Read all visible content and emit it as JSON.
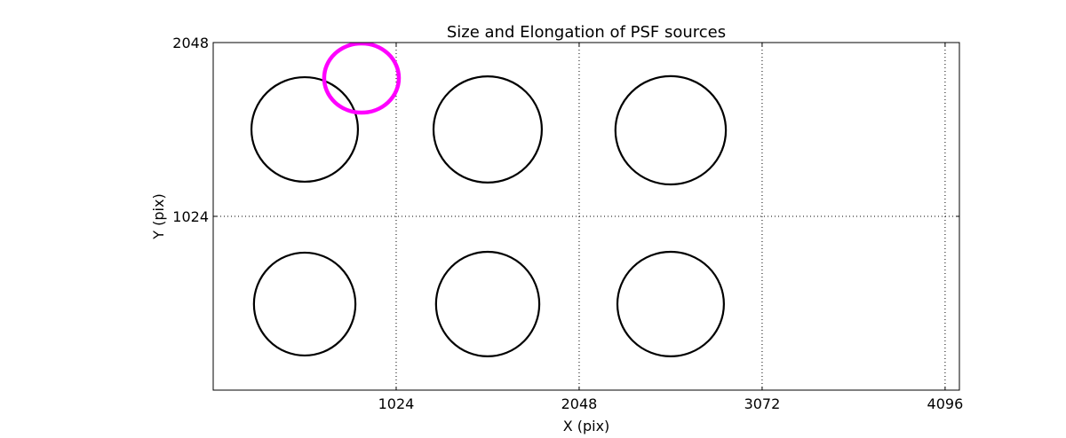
{
  "chart_data": {
    "type": "scatter",
    "title": "Size and Elongation of PSF sources",
    "xlabel": "X (pix)",
    "ylabel": "Y (pix)",
    "xlim": [
      0,
      4176
    ],
    "ylim": [
      0,
      2048
    ],
    "xticks": [
      1024,
      2048,
      3072,
      4096
    ],
    "xtick_labels": [
      "1024",
      "2048",
      "3072",
      "4096"
    ],
    "yticks": [
      1024,
      2048
    ],
    "ytick_labels": [
      "1024",
      "2048"
    ],
    "grid": true,
    "legend": "none",
    "colors": {
      "source": "#000000",
      "highlight": "#ff00ff"
    },
    "sources": [
      {
        "x": 512,
        "y": 1536,
        "rx": 298,
        "ry": 308
      },
      {
        "x": 1536,
        "y": 1536,
        "rx": 303,
        "ry": 313
      },
      {
        "x": 2560,
        "y": 1531,
        "rx": 309,
        "ry": 319
      },
      {
        "x": 512,
        "y": 507,
        "rx": 284,
        "ry": 303
      },
      {
        "x": 1536,
        "y": 507,
        "rx": 289,
        "ry": 308
      },
      {
        "x": 2560,
        "y": 507,
        "rx": 298,
        "ry": 308
      }
    ],
    "highlight": {
      "x": 830,
      "y": 1839,
      "rx": 209,
      "ry": 204
    }
  }
}
